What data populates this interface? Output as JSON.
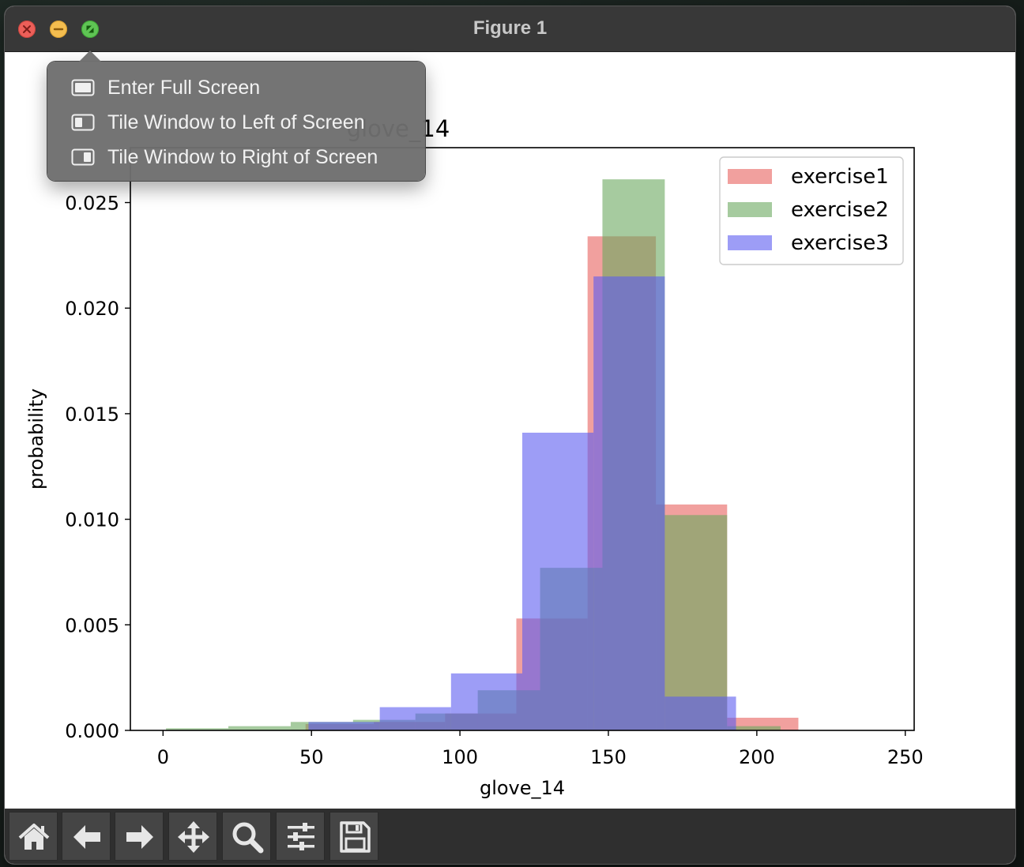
{
  "window": {
    "title": "Figure 1"
  },
  "traffic_lights": [
    "close",
    "minimize",
    "zoom"
  ],
  "zoom_menu": {
    "items": [
      {
        "label": "Enter Full Screen",
        "icon": "full-screen-icon"
      },
      {
        "label": "Tile Window to Left of Screen",
        "icon": "tile-left-icon"
      },
      {
        "label": "Tile Window to Right of Screen",
        "icon": "tile-right-icon"
      }
    ]
  },
  "toolbar": {
    "buttons": [
      {
        "name": "home",
        "icon": "home-icon"
      },
      {
        "name": "back",
        "icon": "back-arrow-icon"
      },
      {
        "name": "forward",
        "icon": "forward-arrow-icon"
      },
      {
        "name": "pan",
        "icon": "pan-move-icon"
      },
      {
        "name": "zoom",
        "icon": "magnifier-icon"
      },
      {
        "name": "configure-subplots",
        "icon": "sliders-icon"
      },
      {
        "name": "save",
        "icon": "save-disk-icon"
      }
    ]
  },
  "chart_data": {
    "type": "bar",
    "title": "glove_14",
    "xlabel": "glove_14",
    "ylabel": "probability",
    "xlim": [
      -11,
      253
    ],
    "ylim": [
      0,
      0.0276
    ],
    "xticks": [
      0,
      50,
      100,
      150,
      200,
      250
    ],
    "yticks": [
      "0.000",
      "0.005",
      "0.010",
      "0.015",
      "0.020",
      "0.025"
    ],
    "grid": false,
    "legend_position": "top-right",
    "series": [
      {
        "name": "exercise1",
        "color": "#e8605e",
        "alpha": 0.6,
        "edges": [
          48,
          71,
          95,
          119,
          143,
          166,
          190,
          214
        ],
        "values": [
          0.0003,
          0.0004,
          0.0008,
          0.0053,
          0.0234,
          0.0107,
          0.0006
        ]
      },
      {
        "name": "exercise2",
        "color": "#6aa95f",
        "alpha": 0.6,
        "edges": [
          1,
          22,
          43,
          64,
          85,
          106,
          127,
          148,
          169,
          190,
          208
        ],
        "values": [
          0.0001,
          0.0002,
          0.0004,
          0.0005,
          0.0008,
          0.0019,
          0.0077,
          0.0261,
          0.0102,
          0.0002
        ]
      },
      {
        "name": "exercise3",
        "color": "#5b5bf0",
        "alpha": 0.6,
        "edges": [
          49,
          73,
          97,
          121,
          145,
          169,
          193
        ],
        "values": [
          0.0004,
          0.0011,
          0.0027,
          0.0141,
          0.0215,
          0.0016
        ]
      }
    ]
  }
}
